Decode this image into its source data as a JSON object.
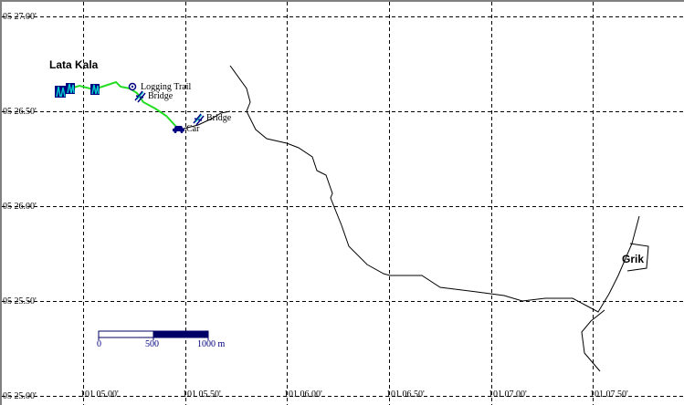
{
  "map": {
    "latitude_labels": [
      "05 27.00'",
      "05 26.50'",
      "05 26.00'",
      "05 25.50'",
      "05 25.00'"
    ],
    "longitude_labels": [
      "101 05.00'",
      "101 05.50'",
      "101 06.00'",
      "101 06.50'",
      "101 07.00'",
      "101 07.50'"
    ],
    "places": {
      "lata_kala": "Lata Kala",
      "grik": "Grik"
    },
    "waypoints": {
      "logging_trail": "Logging Trail",
      "bridge_1": "Bridge",
      "bridge_2": "Bridge",
      "car": "Car"
    },
    "scale": {
      "label_0": "0",
      "label_500": "500",
      "label_1000": "1000 m"
    },
    "colors": {
      "grid": "#000000",
      "road": "#000000",
      "track": "#22dd22",
      "waypoint_icon": "#000080",
      "bridge_icon": "#00c8c8",
      "scale_fill": "#000066",
      "scale_text": "#000080"
    },
    "icons": [
      "waterfall-icon",
      "logging-trail-icon",
      "bridge-icon",
      "car-icon"
    ]
  }
}
